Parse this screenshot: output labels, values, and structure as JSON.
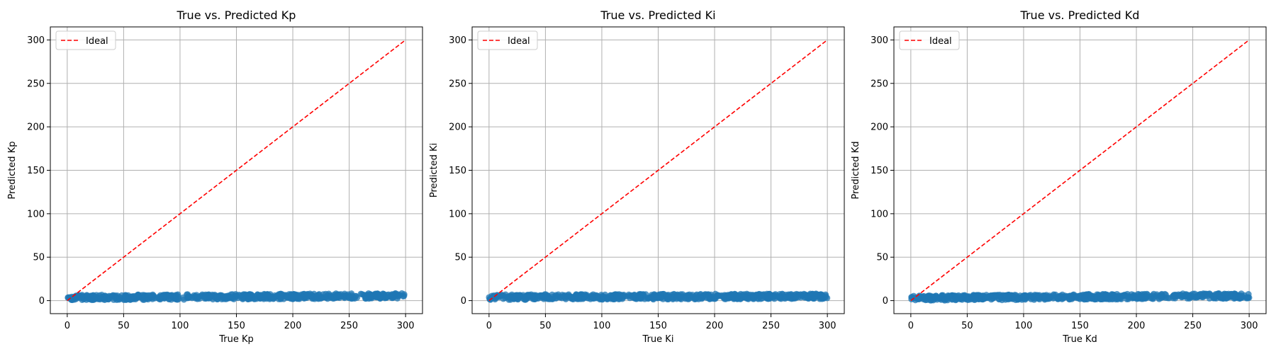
{
  "colors": {
    "scatter": "#1f77b4",
    "ideal": "#ff0000",
    "grid": "#b0b0b0",
    "axes": "#000000",
    "background": "#ffffff"
  },
  "chart_data": [
    {
      "type": "scatter",
      "title": "True vs. Predicted Kp",
      "xlabel": "True Kp",
      "ylabel": "Predicted Kp",
      "xlim": [
        -15,
        315
      ],
      "ylim": [
        -15,
        315
      ],
      "xticks": [
        0,
        50,
        100,
        150,
        200,
        250,
        300
      ],
      "yticks": [
        0,
        50,
        100,
        150,
        200,
        250,
        300
      ],
      "grid": true,
      "legend": {
        "placement": "top-left",
        "entries": [
          "Ideal"
        ]
      },
      "ideal_line": {
        "label": "Ideal",
        "x": [
          0,
          300
        ],
        "y": [
          0,
          300
        ]
      },
      "scatter_band": {
        "x": [
          0,
          300
        ],
        "center_y": [
          3.5,
          5.5
        ],
        "spread": 3
      }
    },
    {
      "type": "scatter",
      "title": "True vs. Predicted Ki",
      "xlabel": "True Ki",
      "ylabel": "Predicted Ki",
      "xlim": [
        -15,
        315
      ],
      "ylim": [
        -15,
        315
      ],
      "xticks": [
        0,
        50,
        100,
        150,
        200,
        250,
        300
      ],
      "yticks": [
        0,
        50,
        100,
        150,
        200,
        250,
        300
      ],
      "grid": true,
      "legend": {
        "placement": "top-left",
        "entries": [
          "Ideal"
        ]
      },
      "ideal_line": {
        "label": "Ideal",
        "x": [
          0,
          300
        ],
        "y": [
          0,
          300
        ]
      },
      "scatter_band": {
        "x": [
          0,
          300
        ],
        "center_y": [
          4,
          5
        ],
        "spread": 3
      }
    },
    {
      "type": "scatter",
      "title": "True vs. Predicted Kd",
      "xlabel": "True Kd",
      "ylabel": "Predicted Kd",
      "xlim": [
        -15,
        315
      ],
      "ylim": [
        -15,
        315
      ],
      "xticks": [
        0,
        50,
        100,
        150,
        200,
        250,
        300
      ],
      "yticks": [
        0,
        50,
        100,
        150,
        200,
        250,
        300
      ],
      "grid": true,
      "legend": {
        "placement": "top-left",
        "entries": [
          "Ideal"
        ]
      },
      "ideal_line": {
        "label": "Ideal",
        "x": [
          0,
          300
        ],
        "y": [
          0,
          300
        ]
      },
      "scatter_band": {
        "x": [
          0,
          300
        ],
        "center_y": [
          3,
          5.5
        ],
        "spread": 3
      }
    }
  ]
}
